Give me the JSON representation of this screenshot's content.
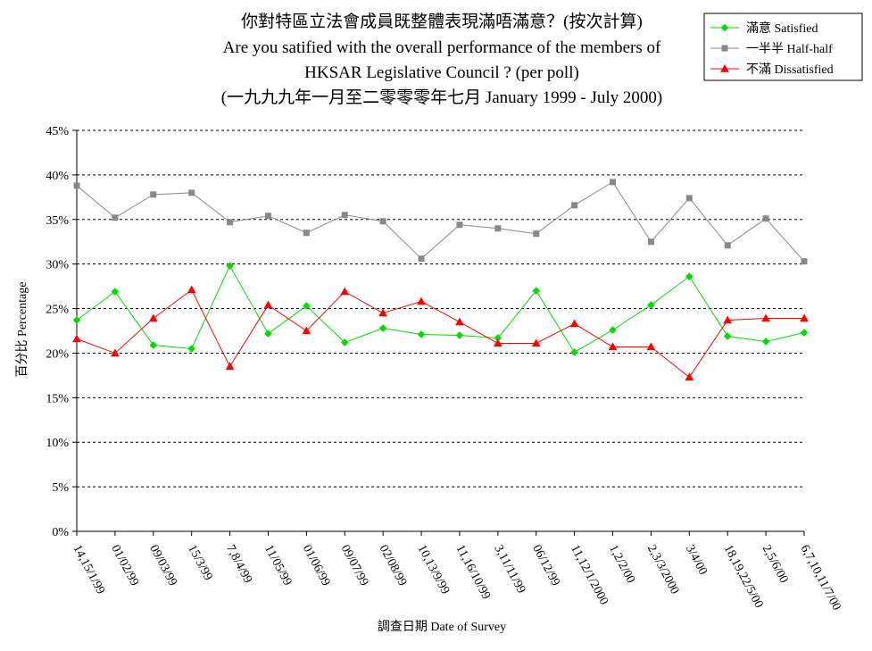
{
  "chart_data": {
    "type": "line",
    "title_lines": [
      "你對特區立法會成員既整體表現滿唔滿意？(按次計算)",
      "Are you satified with the overall performance of the members of",
      "HKSAR Legislative Council ?  (per poll)",
      "(一九九九年一月至二零零零年七月 January 1999 - July 2000)"
    ],
    "xlabel": "調查日期 Date of Survey",
    "ylabel": "百分比 Percentage",
    "ylim": [
      0,
      45
    ],
    "yticks": [
      "0%",
      "5%",
      "10%",
      "15%",
      "20%",
      "25%",
      "30%",
      "35%",
      "40%",
      "45%"
    ],
    "grid": "horizontal-dashed",
    "legend_position": "top-right",
    "categories": [
      "14,15/1/99",
      "01/02/99",
      "09/03/99",
      "15/3/99",
      "7,8/4/99",
      "11/05/99",
      "01/06/99",
      "09/07/99",
      "02/08/99",
      "10,13/9/99",
      "11,16/10/99",
      "3,11/11/99",
      "06/12/99",
      "11,12/1/2000",
      "1,2/2/00",
      "2,3/3/2000",
      "3/4/00",
      "18,19,22/5/00",
      "2,5/6/00",
      "6,7,10,11/7/00"
    ],
    "series": [
      {
        "name": "滿意 Satisfied",
        "color": "#00dd00",
        "marker": "diamond",
        "values": [
          23.7,
          26.9,
          20.9,
          20.5,
          29.8,
          22.2,
          25.3,
          21.2,
          22.8,
          22.1,
          22.0,
          21.7,
          27.0,
          20.1,
          22.6,
          25.4,
          28.6,
          21.9,
          21.3,
          22.3
        ]
      },
      {
        "name": "一半半 Half-half",
        "color": "#888888",
        "marker": "square",
        "values": [
          38.8,
          35.2,
          37.8,
          38.0,
          34.7,
          35.4,
          33.5,
          35.5,
          34.8,
          30.6,
          34.4,
          34.0,
          33.4,
          36.6,
          39.2,
          32.5,
          37.4,
          32.1,
          35.1,
          30.3
        ]
      },
      {
        "name": "不滿 Dissatisfied",
        "color": "#ff0000",
        "marker": "triangle",
        "values": [
          21.6,
          20.0,
          23.9,
          27.1,
          18.5,
          25.4,
          22.5,
          26.9,
          24.5,
          25.8,
          23.5,
          21.1,
          21.1,
          23.3,
          20.7,
          20.7,
          17.3,
          23.7,
          23.9,
          23.9
        ]
      }
    ]
  }
}
